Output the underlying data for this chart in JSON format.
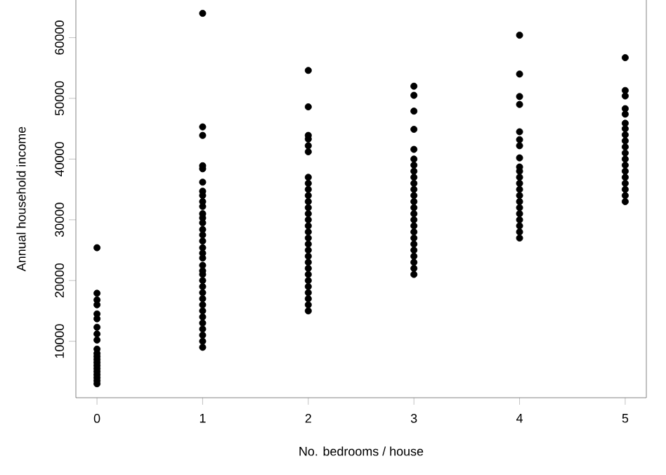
{
  "chart_data": {
    "type": "scatter",
    "xlabel": "No. bedrooms / house",
    "ylabel": "Annual household income",
    "xlim": [
      -0.2,
      5.2
    ],
    "ylim": [
      700,
      66200
    ],
    "xticks": [
      0,
      1,
      2,
      3,
      4,
      5
    ],
    "yticks": [
      10000,
      20000,
      30000,
      40000,
      50000,
      60000
    ],
    "marker": "circle",
    "grid": false,
    "series": [
      {
        "color": "#000000",
        "x": [
          0,
          0,
          0,
          0,
          0,
          0,
          0,
          0,
          0,
          0,
          0,
          0,
          0,
          0,
          0,
          0,
          0,
          0,
          0,
          0,
          0
        ],
        "values": [
          3000,
          3500,
          4000,
          4500,
          5000,
          5500,
          6000,
          6500,
          7000,
          7500,
          8000,
          8700,
          10200,
          11200,
          12300,
          13700,
          14500,
          16000,
          16800,
          17900,
          25400
        ]
      },
      {
        "color": "#000000",
        "x": [
          1,
          1,
          1,
          1,
          1,
          1,
          1,
          1,
          1,
          1,
          1,
          1,
          1,
          1,
          1,
          1,
          1,
          1,
          1,
          1,
          1,
          1,
          1,
          1,
          1,
          1,
          1,
          1,
          1,
          1,
          1,
          1,
          1,
          1
        ],
        "values": [
          9000,
          10000,
          11000,
          12000,
          13000,
          14000,
          15000,
          16000,
          17000,
          18000,
          19000,
          20000,
          21000,
          21600,
          22500,
          23700,
          24500,
          25400,
          26500,
          27500,
          28400,
          29500,
          30300,
          31000,
          32200,
          33000,
          34000,
          34700,
          36200,
          38400,
          38900,
          43900,
          45300,
          64000
        ]
      },
      {
        "color": "#000000",
        "x": [
          2,
          2,
          2,
          2,
          2,
          2,
          2,
          2,
          2,
          2,
          2,
          2,
          2,
          2,
          2,
          2,
          2,
          2,
          2,
          2,
          2,
          2,
          2,
          2,
          2,
          2,
          2,
          2,
          2
        ],
        "values": [
          15000,
          16000,
          17000,
          18000,
          19000,
          20000,
          21000,
          22000,
          23000,
          24000,
          25000,
          26000,
          27000,
          28000,
          29000,
          30000,
          31000,
          32000,
          33000,
          34000,
          35000,
          36000,
          37000,
          41200,
          42200,
          43300,
          43900,
          48600,
          54600
        ]
      },
      {
        "color": "#000000",
        "x": [
          3,
          3,
          3,
          3,
          3,
          3,
          3,
          3,
          3,
          3,
          3,
          3,
          3,
          3,
          3,
          3,
          3,
          3,
          3,
          3,
          3,
          3,
          3,
          3,
          3
        ],
        "values": [
          21000,
          22000,
          23000,
          24000,
          25000,
          26000,
          27000,
          28000,
          29000,
          30000,
          31000,
          32000,
          33000,
          34000,
          35000,
          36000,
          37000,
          38000,
          39000,
          40000,
          41600,
          44900,
          47900,
          50500,
          52000
        ]
      },
      {
        "color": "#000000",
        "x": [
          4,
          4,
          4,
          4,
          4,
          4,
          4,
          4,
          4,
          4,
          4,
          4,
          4,
          4,
          4,
          4,
          4,
          4,
          4,
          4,
          4
        ],
        "values": [
          27000,
          28000,
          29000,
          30000,
          31000,
          32000,
          33000,
          34000,
          35000,
          36000,
          37000,
          38000,
          38700,
          40200,
          42200,
          43200,
          44500,
          49000,
          50300,
          54000,
          60400
        ]
      },
      {
        "color": "#000000",
        "x": [
          5,
          5,
          5,
          5,
          5,
          5,
          5,
          5,
          5,
          5,
          5,
          5,
          5,
          5,
          5,
          5,
          5,
          5,
          5
        ],
        "values": [
          33000,
          34000,
          35000,
          36000,
          37000,
          38000,
          39000,
          40000,
          41000,
          42000,
          43000,
          44000,
          45000,
          45900,
          47400,
          48300,
          50400,
          51300,
          56700
        ]
      }
    ]
  }
}
